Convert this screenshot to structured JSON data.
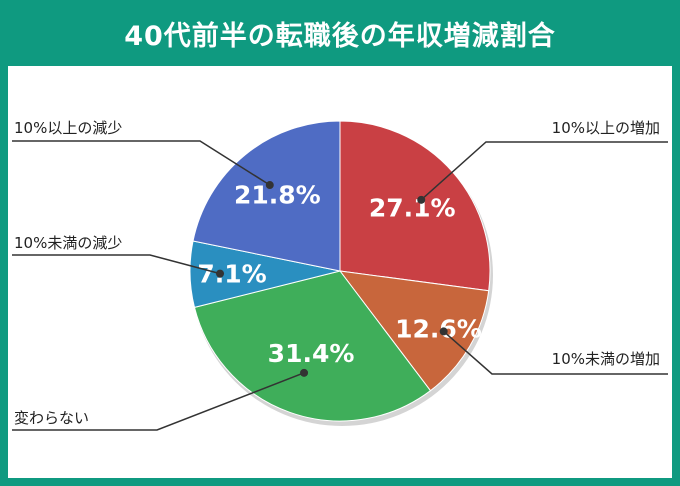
{
  "chart_data": {
    "type": "pie",
    "title": "40代前半の転職後の年収増減割合",
    "slices": [
      {
        "label": "10%以上の増加",
        "value": 27.1,
        "value_label": "27.1%",
        "color": "#c94044"
      },
      {
        "label": "10%未満の増加",
        "value": 12.6,
        "value_label": "12.6%",
        "color": "#c8663c"
      },
      {
        "label": "変わらない",
        "value": 31.4,
        "value_label": "31.4%",
        "color": "#3fae5a"
      },
      {
        "label": "10%未満の減少",
        "value": 7.1,
        "value_label": "7.1%",
        "color": "#2a8fc0"
      },
      {
        "label": "10%以上の減少",
        "value": 21.8,
        "value_label": "21.8%",
        "color": "#4f6cc4"
      }
    ],
    "start_angle": "12 o'clock",
    "direction": "clockwise",
    "legend": "none"
  },
  "colors": {
    "header_background": "#0f9a80",
    "panel_background": "#ffffff",
    "leader_line": "#333333"
  }
}
